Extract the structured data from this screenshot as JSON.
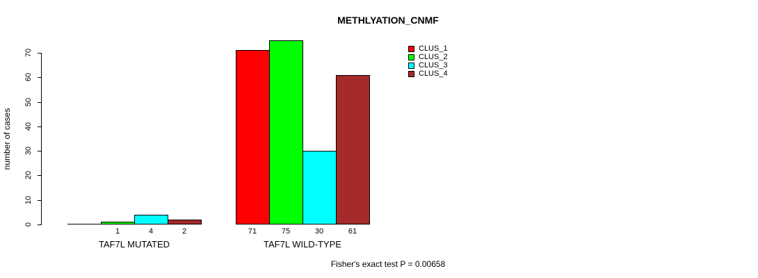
{
  "title": "METHLYATION_CNMF",
  "footer": "Fisher's exact test P = 0.00658",
  "chart_data": {
    "type": "bar",
    "title": "METHLYATION_CNMF",
    "xlabel": "",
    "ylabel": "number of cases",
    "ylim": [
      0,
      70
    ],
    "yticks": [
      0,
      10,
      20,
      30,
      40,
      50,
      60,
      70
    ],
    "grid": false,
    "legend_position": "top-right",
    "categories": [
      "TAF7L MUTATED",
      "TAF7L WILD-TYPE"
    ],
    "series": [
      {
        "name": "CLUS_1",
        "color": "#FF0000",
        "values": [
          0,
          71
        ]
      },
      {
        "name": "CLUS_2",
        "color": "#00FF00",
        "values": [
          1,
          75
        ]
      },
      {
        "name": "CLUS_3",
        "color": "#00FFFF",
        "values": [
          4,
          30
        ]
      },
      {
        "name": "CLUS_4",
        "color": "#A52A2A",
        "values": [
          2,
          61
        ]
      }
    ],
    "bar_labels": [
      [
        "",
        "1",
        "4",
        "2"
      ],
      [
        "71",
        "75",
        "30",
        "61"
      ]
    ],
    "annotation": "Fisher's exact test P = 0.00658"
  }
}
